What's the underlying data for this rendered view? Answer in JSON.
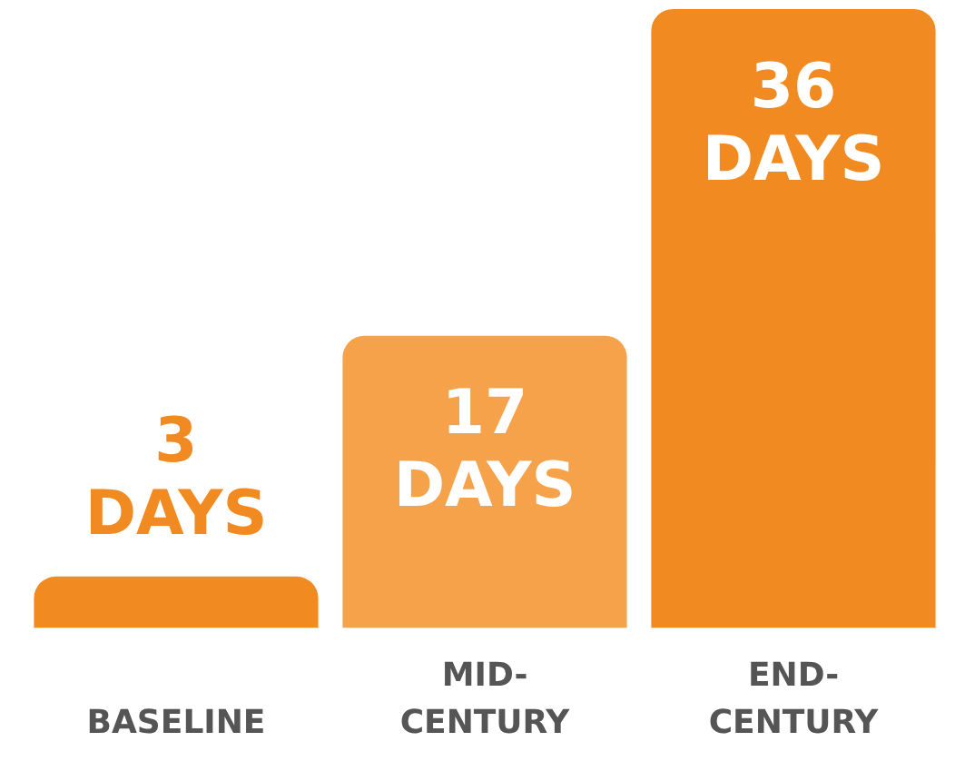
{
  "chart_data": {
    "type": "bar",
    "categories": [
      "BASELINE",
      "MID-CENTURY",
      "END-CENTURY"
    ],
    "values": [
      3,
      17,
      36
    ],
    "colors": [
      "#f18a21",
      "#f5a24a",
      "#f18a21"
    ],
    "value_labels": [
      "3 DAYS",
      "17 DAYS",
      "36 DAYS"
    ],
    "legend": false,
    "grid": false
  }
}
